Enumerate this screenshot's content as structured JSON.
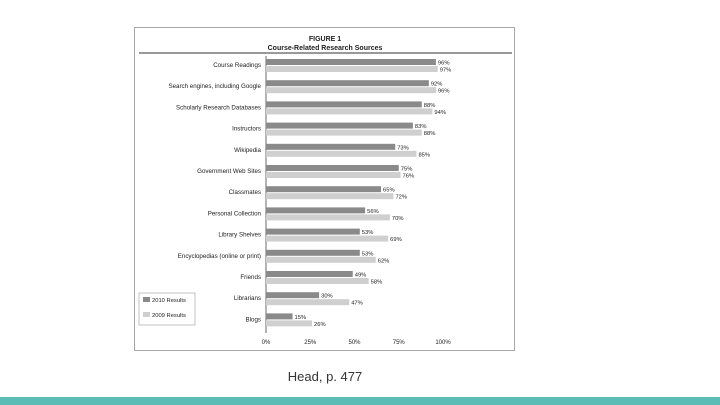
{
  "figure": {
    "number": "FIGURE 1",
    "title": "Course-Related Research Sources"
  },
  "caption": "Head, p. 477",
  "colors": {
    "series_2010": "#8a8a8a",
    "series_2009": "#cfcfcf",
    "band": "#5bbcb5"
  },
  "chart_data": {
    "type": "bar",
    "orientation": "horizontal",
    "title": "Course-Related Research Sources",
    "categories": [
      "Course Readings",
      "Search engines, including Google",
      "Scholarly Research Databases",
      "Instructors",
      "Wikipedia",
      "Government Web Sites",
      "Classmates",
      "Personal Collection",
      "Library Shelves",
      "Encyclopedias (online or print)",
      "Friends",
      "Librarians",
      "Blogs"
    ],
    "series": [
      {
        "name": "2010 Results",
        "values": [
          96,
          92,
          88,
          83,
          73,
          75,
          65,
          56,
          53,
          53,
          49,
          30,
          15
        ]
      },
      {
        "name": "2009 Results",
        "values": [
          97,
          96,
          94,
          88,
          85,
          76,
          72,
          70,
          69,
          62,
          58,
          47,
          26
        ]
      }
    ],
    "value_labels": [
      [
        "96%",
        "92%",
        "88%",
        "83%",
        "73%",
        "75%",
        "65%",
        "56%",
        "53%",
        "53%",
        "49%",
        "30%",
        "15%"
      ],
      [
        "97%",
        "96%",
        "94%",
        "88%",
        "85%",
        "76%",
        "72%",
        "70%",
        "69%",
        "62%",
        "58%",
        "47%",
        "26%"
      ]
    ],
    "xlim": [
      0,
      100
    ],
    "xticks": [
      0,
      25,
      50,
      75,
      100
    ],
    "xtick_labels": [
      "0%",
      "25%",
      "50%",
      "75%",
      "100%"
    ],
    "grid": false,
    "legend": "bottom-left"
  }
}
